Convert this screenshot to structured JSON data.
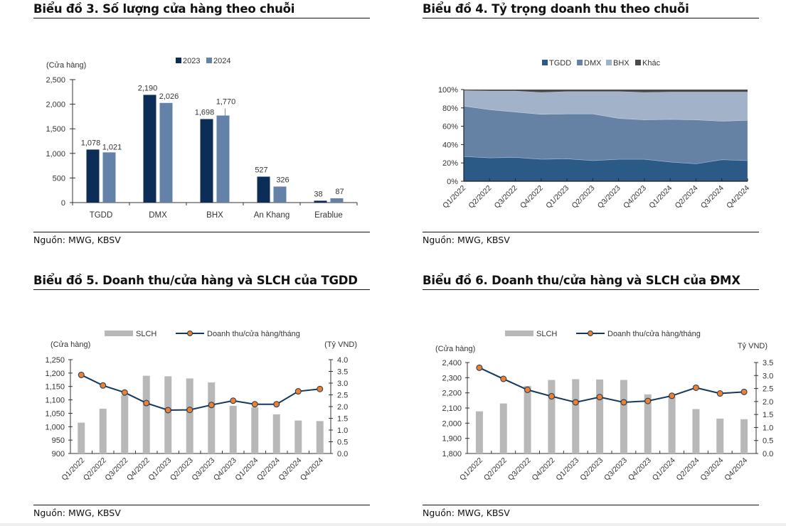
{
  "source_label": "Nguồn: MWG, KBSV",
  "chart_data": [
    {
      "id": "chart3",
      "type": "bar",
      "title": "Biểu đồ 3. Số lượng cửa hàng theo chuỗi",
      "ylabel": "(Cửa hàng)",
      "xlabel": "",
      "categories": [
        "TGDD",
        "DMX",
        "BHX",
        "An Khang",
        "Erablue"
      ],
      "series": [
        {
          "name": "2023",
          "color": "#0c2d57",
          "values": [
            1078,
            2190,
            1698,
            527,
            38
          ],
          "labels": [
            "1,078",
            "2,190",
            "1,698",
            "527",
            "38"
          ]
        },
        {
          "name": "2024",
          "color": "#6482a8",
          "values": [
            1021,
            2026,
            1770,
            326,
            87
          ],
          "labels": [
            "1,021",
            "2,026",
            "1,770",
            "326",
            "87"
          ]
        }
      ],
      "ylim": [
        0,
        2500
      ],
      "yticks": [
        0,
        500,
        1000,
        1500,
        2000,
        2500
      ],
      "ytick_labels": [
        "0",
        "500",
        "1,000",
        "1,500",
        "2,000",
        "2,500"
      ],
      "legend": "top-center",
      "grid": false
    },
    {
      "id": "chart4",
      "type": "area",
      "stacked": true,
      "title": "Biểu đồ 4. Tỷ trọng doanh thu theo chuỗi",
      "categories": [
        "Q1/2022",
        "Q2/2022",
        "Q3/2022",
        "Q4/2022",
        "Q1/2023",
        "Q2/2023",
        "Q3/2023",
        "Q4/2023",
        "Q1/2024",
        "Q2/2024",
        "Q3/2024",
        "Q4/2024"
      ],
      "series": [
        {
          "name": "TGDD",
          "color": "#2b5a86",
          "values": [
            27,
            25.5,
            26,
            24,
            24.5,
            22.5,
            24,
            24,
            21,
            19,
            23.5,
            22.5
          ]
        },
        {
          "name": "DMX",
          "color": "#6582a4",
          "values": [
            55,
            52.5,
            49.5,
            49,
            49,
            51,
            44.5,
            43,
            46.5,
            48,
            42,
            44
          ]
        },
        {
          "name": "BHX",
          "color": "#a2b2c9",
          "values": [
            17,
            20.5,
            23,
            24,
            24.5,
            24.5,
            29.5,
            30,
            30,
            30.5,
            32,
            31
          ]
        },
        {
          "name": "Khác",
          "color": "#4a4a4a",
          "values": [
            1,
            1.5,
            1.5,
            3,
            2,
            2,
            2,
            3,
            2.5,
            2.5,
            2.5,
            2.5
          ]
        }
      ],
      "ylim": [
        0,
        100
      ],
      "yticks": [
        0,
        20,
        40,
        60,
        80,
        100
      ],
      "ytick_labels": [
        "0%",
        "20%",
        "40%",
        "60%",
        "80%",
        "100%"
      ],
      "legend": "top-center",
      "grid": false
    },
    {
      "id": "chart5",
      "type": "bar",
      "combo": "bar+line",
      "title": "Biểu đồ 5. Doanh thu/cửa hàng và SLCH của TGDD",
      "ylabel": "(Cửa hàng)",
      "y2label": "(Tỷ VND)",
      "categories": [
        "Q1/2022",
        "Q2/2022",
        "Q3/2022",
        "Q4/2022",
        "Q1/2023",
        "Q2/2023",
        "Q3/2023",
        "Q4/2023",
        "Q1/2024",
        "Q2/2024",
        "Q3/2024",
        "Q4/2024"
      ],
      "series": [
        {
          "name": "SLCH",
          "kind": "bar",
          "axis": "left",
          "color": "#b8b8b8",
          "values": [
            1015,
            1067,
            1117,
            1190,
            1188,
            1180,
            1165,
            1078,
            1072,
            1046,
            1023,
            1021
          ]
        },
        {
          "name": "Doanh thu/cửa hàng/tháng",
          "kind": "line",
          "axis": "right",
          "color": "#14385f",
          "marker_color": "#ee7f2d",
          "values": [
            3.35,
            2.9,
            2.6,
            2.15,
            1.85,
            1.86,
            2.07,
            2.25,
            2.1,
            2.1,
            2.65,
            2.75
          ]
        }
      ],
      "ylim": [
        900,
        1250
      ],
      "yticks": [
        900,
        950,
        1000,
        1050,
        1100,
        1150,
        1200,
        1250
      ],
      "ytick_labels": [
        "900",
        "950",
        "1,000",
        "1,050",
        "1,100",
        "1,150",
        "1,200",
        "1,250"
      ],
      "y2lim": [
        0,
        4
      ],
      "y2ticks": [
        0,
        0.5,
        1,
        1.5,
        2,
        2.5,
        3,
        3.5,
        4
      ],
      "y2tick_labels": [
        "0.0",
        "0.5",
        "1.0",
        "1.5",
        "2.0",
        "2.5",
        "3.0",
        "3.5",
        "4.0"
      ],
      "legend": "top-center",
      "grid": false
    },
    {
      "id": "chart6",
      "type": "bar",
      "combo": "bar+line",
      "title": "Biểu đồ 6. Doanh thu/cửa hàng và SLCH của ĐMX",
      "ylabel": "(Cửa hàng)",
      "y2label": "Tỷ VND)",
      "categories": [
        "Q1/2022",
        "Q2/2022",
        "Q3/2022",
        "Q4/2022",
        "Q1/2023",
        "Q2/2023",
        "Q3/2023",
        "Q4/2023",
        "Q1/2024",
        "Q2/2024",
        "Q3/2024",
        "Q4/2024"
      ],
      "series": [
        {
          "name": "SLCH",
          "kind": "bar",
          "axis": "left",
          "color": "#b8b8b8",
          "values": [
            2078,
            2130,
            2245,
            2285,
            2290,
            2288,
            2285,
            2190,
            2175,
            2093,
            2030,
            2026
          ]
        },
        {
          "name": "Doanh thu/cửa hàng/tháng",
          "kind": "line",
          "axis": "right",
          "color": "#14385f",
          "marker_color": "#ee7f2d",
          "values": [
            3.3,
            2.87,
            2.45,
            2.2,
            1.97,
            2.17,
            1.97,
            2.02,
            2.22,
            2.53,
            2.31,
            2.37
          ]
        }
      ],
      "ylim": [
        1800,
        2400
      ],
      "yticks": [
        1800,
        1900,
        2000,
        2100,
        2200,
        2300,
        2400
      ],
      "ytick_labels": [
        "1,800",
        "1,900",
        "2,000",
        "2,100",
        "2,200",
        "2,300",
        "2,400"
      ],
      "y2lim": [
        0,
        3.5
      ],
      "y2ticks": [
        0,
        0.5,
        1,
        1.5,
        2,
        2.5,
        3,
        3.5
      ],
      "y2tick_labels": [
        "0.0",
        "0.5",
        "1.0",
        "1.5",
        "2.0",
        "2.5",
        "3.0",
        "3.5"
      ],
      "legend": "top-center",
      "grid": false
    }
  ]
}
